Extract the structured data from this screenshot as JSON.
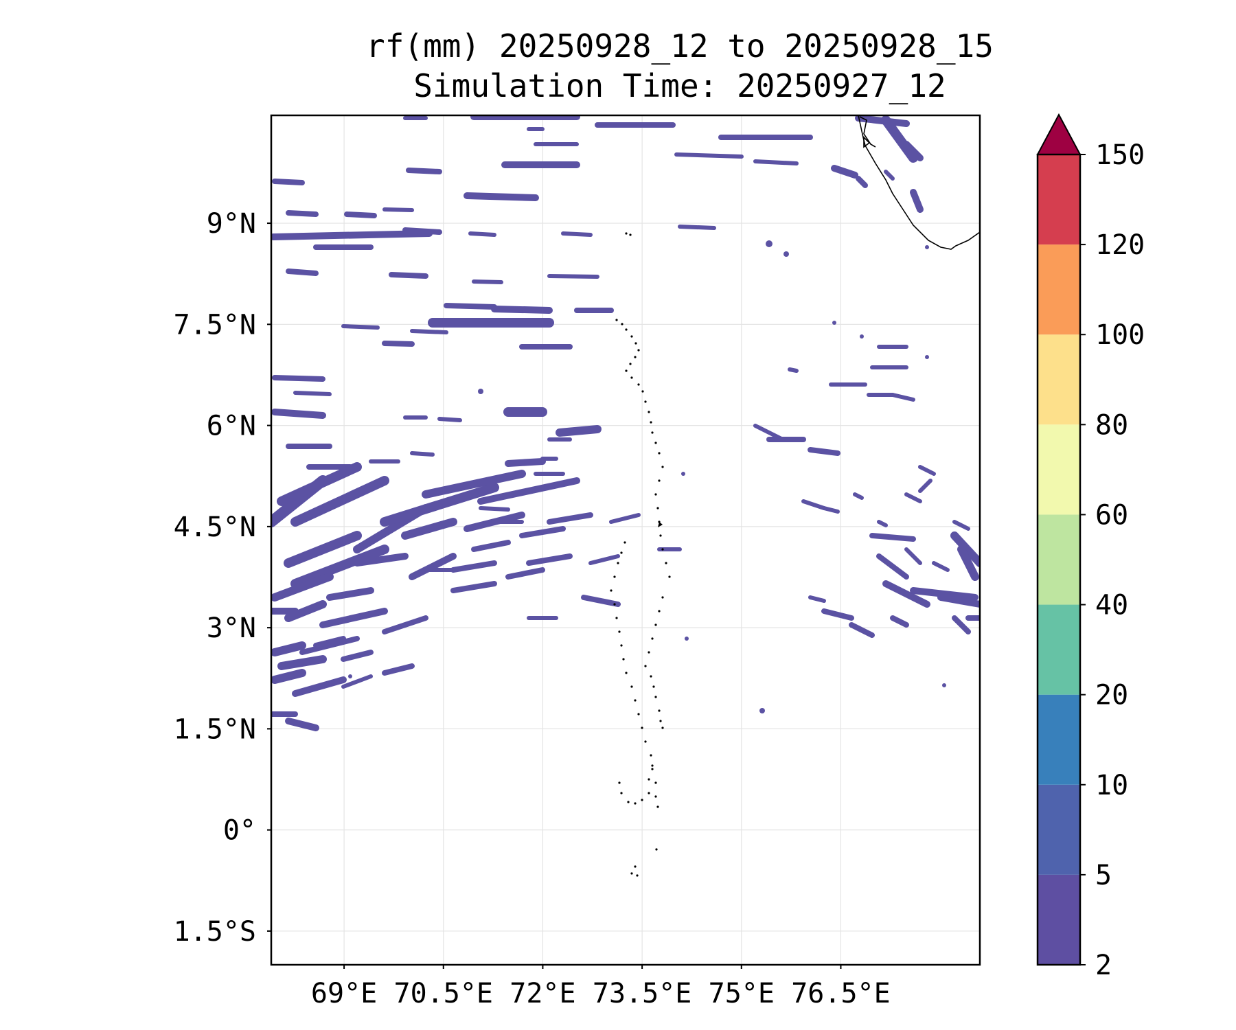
{
  "map": {
    "title_line1": "rf(mm) 20250928_12 to 20250928_15",
    "title_line2": "Simulation Time: 20250927_12",
    "lon_range": [
      67.9,
      78.6
    ],
    "lat_range": [
      -2.0,
      10.6
    ],
    "lon_ticks": [
      {
        "value": 69.0,
        "label": "69°E"
      },
      {
        "value": 70.5,
        "label": "70.5°E"
      },
      {
        "value": 72.0,
        "label": "72°E"
      },
      {
        "value": 73.5,
        "label": "73.5°E"
      },
      {
        "value": 75.0,
        "label": "75°E"
      },
      {
        "value": 76.5,
        "label": "76.5°E"
      }
    ],
    "lat_ticks": [
      {
        "value": 9.0,
        "label": "9°N"
      },
      {
        "value": 7.5,
        "label": "7.5°N"
      },
      {
        "value": 6.0,
        "label": "6°N"
      },
      {
        "value": 4.5,
        "label": "4.5°N"
      },
      {
        "value": 3.0,
        "label": "3°N"
      },
      {
        "value": 1.5,
        "label": "1.5°N"
      },
      {
        "value": 0.0,
        "label": "0°"
      },
      {
        "value": -1.5,
        "label": "1.5°S"
      }
    ],
    "gridlines": true,
    "rain_color": "#5b52a3",
    "rain_edge_color": "#4a62ab",
    "colorbar": {
      "levels": [
        "2",
        "5",
        "10",
        "20",
        "40",
        "60",
        "80",
        "100",
        "120",
        "150"
      ],
      "colors": [
        "#5e4fa2",
        "#4f63ad",
        "#3880bb",
        "#66c2a5",
        "#bee5a0",
        "#f2f9ae",
        "#fde08b",
        "#fa9c58",
        "#d53e4f"
      ],
      "extend_color": "#9e0142",
      "extend": "max"
    }
  }
}
